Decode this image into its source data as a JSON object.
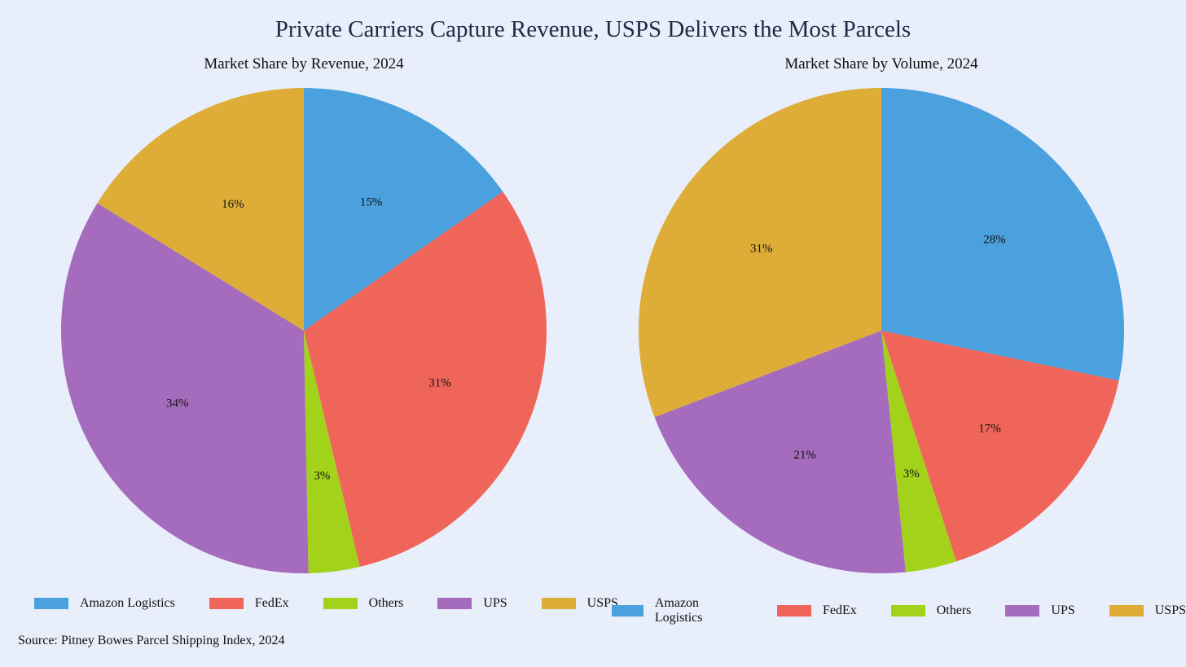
{
  "title": "Private Carriers Capture Revenue, USPS Delivers the Most Parcels",
  "source": "Source: Pitney Bowes Parcel Shipping Index, 2024",
  "colors": {
    "Amazon Logistics": "#4aa1de",
    "FedEx": "#f0655a",
    "Others": "#a2d31a",
    "UPS": "#a56bbd",
    "USPS": "#ddad38"
  },
  "chart_data": [
    {
      "type": "pie",
      "title": "Market Share by Revenue, 2024",
      "categories": [
        "Amazon Logistics",
        "FedEx",
        "Others",
        "UPS",
        "USPS"
      ],
      "values": [
        15.3,
        31.0,
        3.4,
        34.1,
        16.2
      ],
      "labels": [
        "15%",
        "31%",
        "3%",
        "34%",
        "16%"
      ],
      "start_angle": "12 o'clock",
      "direction": "clockwise",
      "legend": [
        "Amazon Logistics",
        "FedEx",
        "Others",
        "UPS",
        "USPS"
      ],
      "legend_position": "bottom"
    },
    {
      "type": "pie",
      "title": "Market Share by Volume, 2024",
      "categories": [
        "Amazon Logistics",
        "FedEx",
        "Others",
        "UPS",
        "USPS"
      ],
      "values": [
        28.3,
        16.7,
        3.4,
        20.8,
        30.8
      ],
      "labels": [
        "28%",
        "17%",
        "3%",
        "21%",
        "31%"
      ],
      "start_angle": "12 o'clock",
      "direction": "clockwise",
      "legend": [
        "Amazon Logistics",
        "FedEx",
        "Others",
        "UPS",
        "USPS"
      ],
      "legend_position": "bottom"
    }
  ]
}
